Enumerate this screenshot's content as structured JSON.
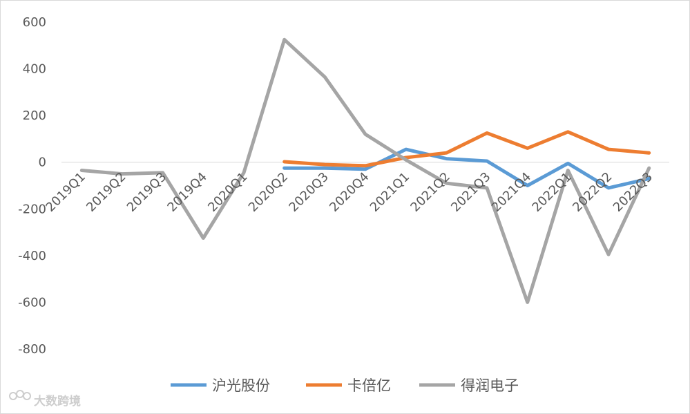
{
  "chart_data": {
    "type": "line",
    "categories": [
      "2019Q1",
      "2019Q2",
      "2019Q3",
      "2019Q4",
      "2020Q1",
      "2020Q2",
      "2020Q3",
      "2020Q4",
      "2021Q1",
      "2021Q2",
      "2021Q3",
      "2021Q4",
      "2022Q1",
      "2022Q2",
      "2022Q3"
    ],
    "series": [
      {
        "name": "沪光股份",
        "color": "#5b9bd5",
        "values": [
          null,
          null,
          null,
          null,
          null,
          -25,
          -25,
          -30,
          55,
          15,
          5,
          -100,
          -5,
          -110,
          -70
        ]
      },
      {
        "name": "卡倍亿",
        "color": "#ed7d31",
        "values": [
          null,
          null,
          null,
          null,
          null,
          2,
          -10,
          -15,
          20,
          40,
          125,
          60,
          130,
          55,
          40
        ]
      },
      {
        "name": "得润电子",
        "color": "#a5a5a5",
        "values": [
          -35,
          -50,
          -45,
          -325,
          -45,
          525,
          365,
          120,
          10,
          -90,
          -110,
          -600,
          -35,
          -395,
          -25
        ]
      }
    ],
    "ylim": [
      -800,
      600
    ],
    "yticks": [
      "600",
      "400",
      "200",
      "0",
      "-200",
      "-400",
      "-600",
      "-800"
    ],
    "grid": false,
    "legend_position": "bottom"
  },
  "watermark": {
    "text": "大数跨境"
  }
}
